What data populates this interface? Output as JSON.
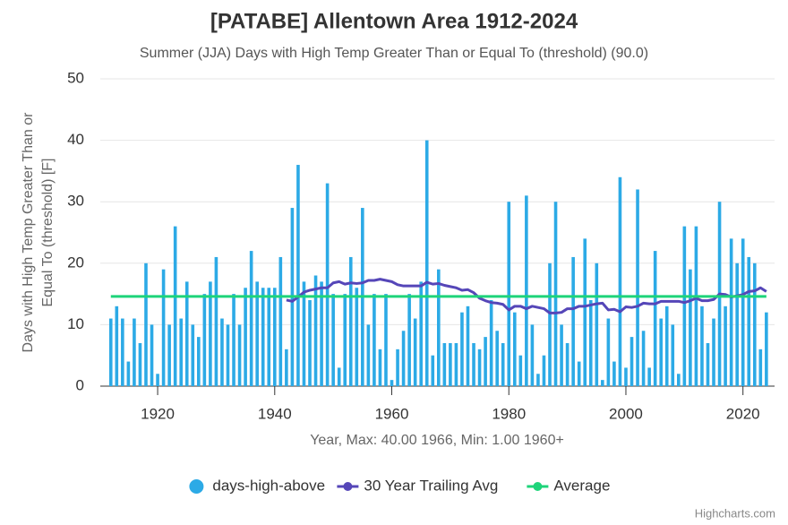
{
  "chart_data": {
    "type": "column-line",
    "title": "[PATABE] Allentown Area 1912-2024",
    "subtitle": "Summer (JJA) Days with High Temp Greater Than or Equal To (threshold) (90.0)",
    "ylabel": [
      "Days with High Temp Greater Than or",
      "Equal To (threshold) [F]"
    ],
    "xlabel": "Year, Max: 40.00 1966, Min: 1.00 1960+",
    "credit": "Highcharts.com",
    "x": [
      1912,
      1913,
      1914,
      1915,
      1916,
      1917,
      1918,
      1919,
      1920,
      1921,
      1922,
      1923,
      1924,
      1925,
      1926,
      1927,
      1928,
      1929,
      1930,
      1931,
      1932,
      1933,
      1934,
      1935,
      1936,
      1937,
      1938,
      1939,
      1940,
      1941,
      1942,
      1943,
      1944,
      1945,
      1946,
      1947,
      1948,
      1949,
      1950,
      1951,
      1952,
      1953,
      1954,
      1955,
      1956,
      1957,
      1958,
      1959,
      1960,
      1961,
      1962,
      1963,
      1964,
      1965,
      1966,
      1967,
      1968,
      1969,
      1970,
      1971,
      1972,
      1973,
      1974,
      1975,
      1976,
      1977,
      1978,
      1979,
      1980,
      1981,
      1982,
      1983,
      1984,
      1985,
      1986,
      1987,
      1988,
      1989,
      1990,
      1991,
      1992,
      1993,
      1994,
      1995,
      1996,
      1997,
      1998,
      1999,
      2000,
      2001,
      2002,
      2003,
      2004,
      2005,
      2006,
      2007,
      2008,
      2009,
      2010,
      2011,
      2012,
      2013,
      2014,
      2015,
      2016,
      2017,
      2018,
      2019,
      2020,
      2021,
      2022,
      2023,
      2024
    ],
    "series": [
      {
        "name": "days-high-above",
        "kind": "column",
        "color": "#2caae6",
        "values": [
          11,
          13,
          11,
          4,
          11,
          7,
          20,
          10,
          2,
          19,
          10,
          26,
          11,
          17,
          10,
          8,
          15,
          17,
          21,
          11,
          10,
          15,
          10,
          16,
          22,
          17,
          16,
          16,
          16,
          21,
          6,
          29,
          36,
          17,
          14,
          18,
          17,
          33,
          15,
          3,
          15,
          21,
          16,
          29,
          10,
          15,
          6,
          15,
          1,
          6,
          9,
          15,
          11,
          17,
          40,
          5,
          19,
          7,
          7,
          7,
          12,
          13,
          7,
          6,
          8,
          14,
          9,
          7,
          30,
          12,
          5,
          31,
          10,
          2,
          5,
          20,
          30,
          10,
          7,
          21,
          4,
          24,
          14,
          20,
          1,
          11,
          4,
          34,
          3,
          8,
          32,
          9,
          3,
          22,
          11,
          13,
          10,
          2,
          26,
          19,
          26,
          13,
          7,
          11,
          30,
          13,
          24,
          20,
          24,
          21,
          20,
          6,
          12
        ]
      },
      {
        "name": "30 Year Trailing Avg",
        "kind": "line",
        "color": "#5546b8",
        "values": [
          null,
          null,
          null,
          null,
          null,
          null,
          null,
          null,
          null,
          null,
          null,
          null,
          null,
          null,
          null,
          null,
          null,
          null,
          null,
          null,
          null,
          null,
          null,
          null,
          null,
          null,
          null,
          null,
          null,
          null,
          14,
          13.8,
          14.5,
          15.3,
          15.6,
          15.8,
          16,
          16,
          16.8,
          17,
          16.6,
          16.8,
          16.7,
          16.8,
          17.2,
          17.2,
          17.4,
          17.2,
          17,
          16.5,
          16.3,
          16.3,
          16.3,
          16.3,
          16.9,
          16.6,
          16.7,
          16.4,
          16.2,
          16,
          15.6,
          15.7,
          15.2,
          14.3,
          13.9,
          13.6,
          13.5,
          13.3,
          12.4,
          13,
          13,
          12.6,
          13,
          12.8,
          12.6,
          11.9,
          11.9,
          12,
          12.6,
          12.6,
          13,
          13,
          13.2,
          13.4,
          13.5,
          12.4,
          12.5,
          12.1,
          12.9,
          12.8,
          13,
          13.5,
          13.4,
          13.4,
          13.8,
          13.8,
          13.8,
          13.8,
          13.6,
          13.9,
          14.3,
          13.9,
          13.9,
          14.1,
          15,
          14.9,
          14.5,
          14.7,
          14.9,
          15.4,
          15.5,
          16,
          15.4
        ]
      },
      {
        "name": "Average",
        "kind": "hline",
        "color": "#1ed47a",
        "value": 14.6
      }
    ],
    "xlim": [
      1910.2,
      2025.4
    ],
    "xticks": [
      1920,
      1940,
      1960,
      1980,
      2000,
      2020
    ],
    "ylim": [
      0,
      50
    ],
    "yticks": [
      0,
      10,
      20,
      30,
      40,
      50
    ],
    "grid": true,
    "legend": "bottom"
  }
}
